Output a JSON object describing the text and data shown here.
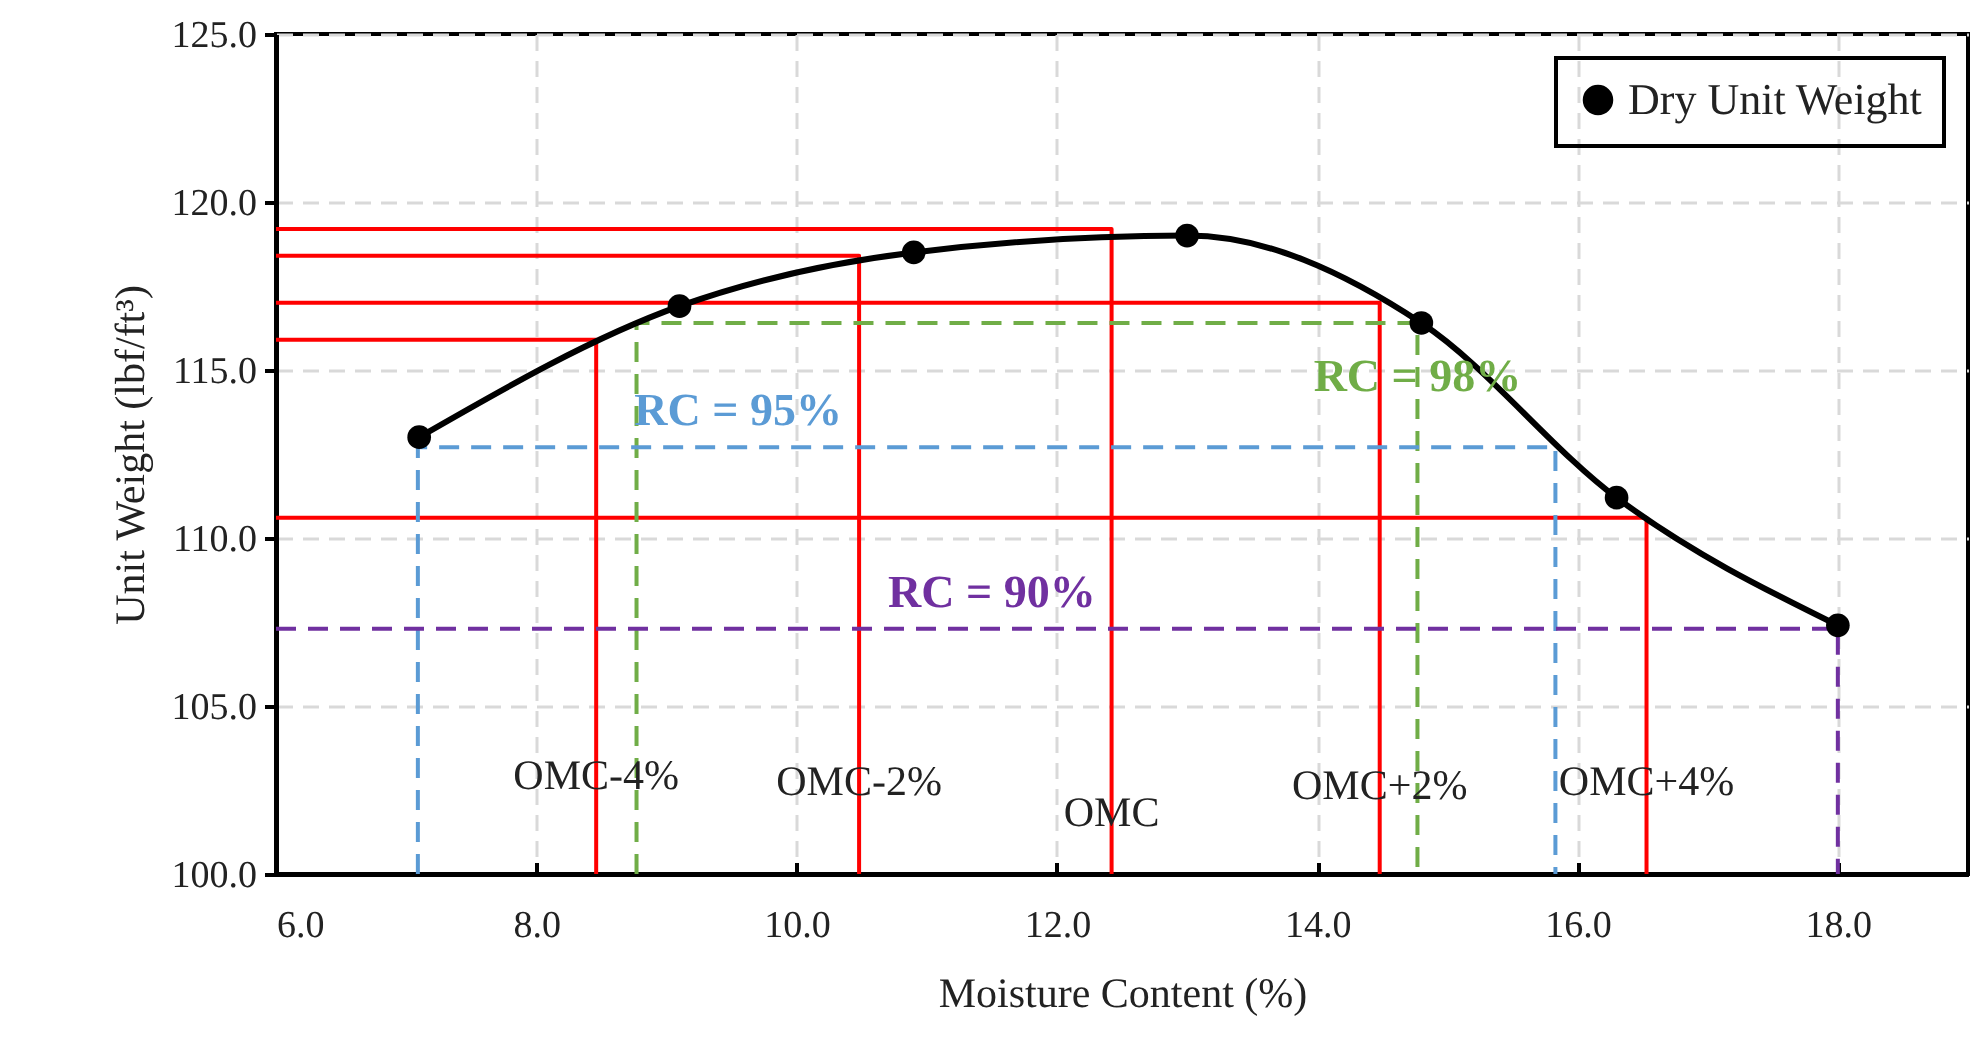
{
  "chart_data": {
    "type": "line",
    "xlabel": "Moisture Content (%)",
    "ylabel": "Unit Weight (lbf/ft³)",
    "xlim": [
      6,
      19
    ],
    "ylim": [
      100,
      125
    ],
    "xticks": [
      {
        "value": 6,
        "label": "6.0"
      },
      {
        "value": 8,
        "label": "8.0"
      },
      {
        "value": 10,
        "label": "10.0"
      },
      {
        "value": 12,
        "label": "12.0"
      },
      {
        "value": 14,
        "label": "14.0"
      },
      {
        "value": 16,
        "label": "16.0"
      },
      {
        "value": 18,
        "label": "18.0"
      }
    ],
    "yticks": [
      {
        "value": 100,
        "label": "100.0"
      },
      {
        "value": 105,
        "label": "105.0"
      },
      {
        "value": 110,
        "label": "110.0"
      },
      {
        "value": 115,
        "label": "115.0"
      },
      {
        "value": 120,
        "label": "120.0"
      },
      {
        "value": 125,
        "label": "125.0"
      }
    ],
    "grid": true,
    "legend": "top right",
    "series": [
      {
        "x": [
          6,
          12.42,
          12.42
        ],
        "values": [
          119.2,
          119.2,
          100
        ],
        "color": "#ff0000",
        "line_style": "solid",
        "marker": "none"
      },
      {
        "x": [
          6,
          10.48,
          10.48
        ],
        "values": [
          118.4,
          118.4,
          100
        ],
        "color": "#ff0000",
        "line_style": "solid",
        "marker": "none"
      },
      {
        "x": [
          6,
          14.48,
          14.48
        ],
        "values": [
          117.0,
          117.0,
          100
        ],
        "color": "#ff0000",
        "line_style": "solid",
        "marker": "none"
      },
      {
        "x": [
          6,
          8.46,
          8.46
        ],
        "values": [
          115.9,
          115.9,
          100
        ],
        "color": "#ff0000",
        "line_style": "solid",
        "marker": "none"
      },
      {
        "x": [
          6,
          16.53,
          16.53
        ],
        "values": [
          110.6,
          110.6,
          100
        ],
        "color": "#ff0000",
        "line_style": "solid",
        "marker": "none"
      },
      {
        "x": [
          8.77,
          8.77,
          14.77,
          14.77
        ],
        "values": [
          100,
          116.4,
          116.4,
          100
        ],
        "color": "#70ad47",
        "line_style": "dashed",
        "marker": "none"
      },
      {
        "x": [
          7.09,
          7.09,
          15.83,
          15.83
        ],
        "values": [
          100,
          112.7,
          112.7,
          100
        ],
        "color": "#5b9bd5",
        "line_style": "dashed",
        "marker": "none"
      },
      {
        "x": [
          6,
          18,
          18
        ],
        "values": [
          107.3,
          107.3,
          100
        ],
        "color": "#7030a0",
        "line_style": "dashed",
        "marker": "none"
      },
      {
        "name": "Dry Unit Weight",
        "x": [
          7.1,
          9.1,
          10.9,
          13.0,
          14.8,
          16.3,
          18.0
        ],
        "values": [
          113.0,
          116.9,
          118.5,
          119.0,
          116.4,
          111.2,
          107.4
        ],
        "color": "#000000",
        "line_style": "solid",
        "marker": "circle"
      }
    ],
    "annotations": [
      {
        "text": "RC = 95%",
        "x": 9.55,
        "y": 112.7
      },
      {
        "text": "RC = 98%",
        "x": 14.77,
        "y": 114.8
      },
      {
        "text": "RC = 90%",
        "x": 11.5,
        "y": 107.3
      },
      {
        "text": "OMC-4%",
        "x": 8.46,
        "y": 102.9
      },
      {
        "text": "OMC-2%",
        "x": 10.48,
        "y": 102.7
      },
      {
        "text": "OMC",
        "x": 12.42,
        "y": 101.8
      },
      {
        "text": "OMC+2%",
        "x": 14.48,
        "y": 102.6
      },
      {
        "text": "OMC+4%",
        "x": 16.53,
        "y": 102.7
      }
    ]
  }
}
